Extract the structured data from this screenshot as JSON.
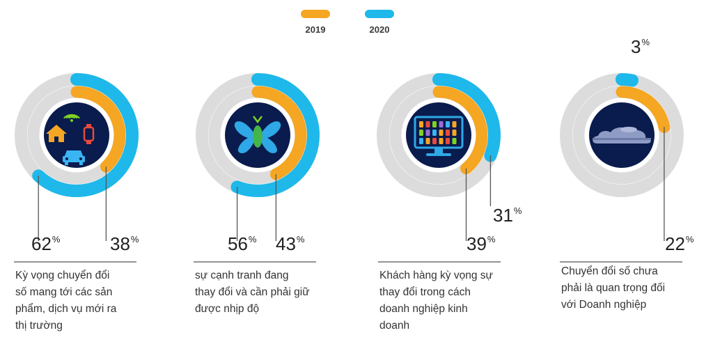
{
  "colors": {
    "y2019": "#F5A623",
    "y2020": "#1EB8EA",
    "track": "#DCDCDC",
    "icon_bg": "#0A1B4D"
  },
  "legend": [
    {
      "label": "2019",
      "color": "#F5A623"
    },
    {
      "label": "2020",
      "color": "#1EB8EA"
    }
  ],
  "chart_data": [
    {
      "type": "donut",
      "icon": "smart-home-icon",
      "series": [
        {
          "name": "2019",
          "value": 38
        },
        {
          "name": "2020",
          "value": 62
        }
      ],
      "labels": {
        "2019": "38",
        "2020": "62"
      },
      "pct_symbol": "%",
      "caption": [
        "Kỳ vọng chuyển đổi",
        "số mang tới các sản",
        "phẩm, dịch vụ mới ra",
        "thị trường"
      ]
    },
    {
      "type": "donut",
      "icon": "butterfly-logo-icon",
      "series": [
        {
          "name": "2019",
          "value": 43
        },
        {
          "name": "2020",
          "value": 56
        }
      ],
      "labels": {
        "2019": "43",
        "2020": "56"
      },
      "pct_symbol": "%",
      "caption": [
        "sự cạnh tranh đang",
        "thay đổi và cần phải giữ",
        "được nhịp độ"
      ]
    },
    {
      "type": "donut",
      "icon": "monitor-dashboard-icon",
      "series": [
        {
          "name": "2019",
          "value": 39
        },
        {
          "name": "2020",
          "value": 31
        }
      ],
      "labels": {
        "2019": "39",
        "2020": "31"
      },
      "pct_symbol": "%",
      "caption": [
        "Khách hàng kỳ vọng sự",
        "thay đổi trong cách",
        "doanh nghiệp kinh",
        "doanh"
      ]
    },
    {
      "type": "donut",
      "icon": "cloud-icon",
      "series": [
        {
          "name": "2019",
          "value": 22
        },
        {
          "name": "2020",
          "value": 3
        }
      ],
      "labels": {
        "2019": "22",
        "2020": "3"
      },
      "pct_symbol": "%",
      "caption": [
        "Chuyển đổi số chưa",
        "phải là quan trọng đối",
        "với Doanh nghiệp"
      ]
    }
  ]
}
